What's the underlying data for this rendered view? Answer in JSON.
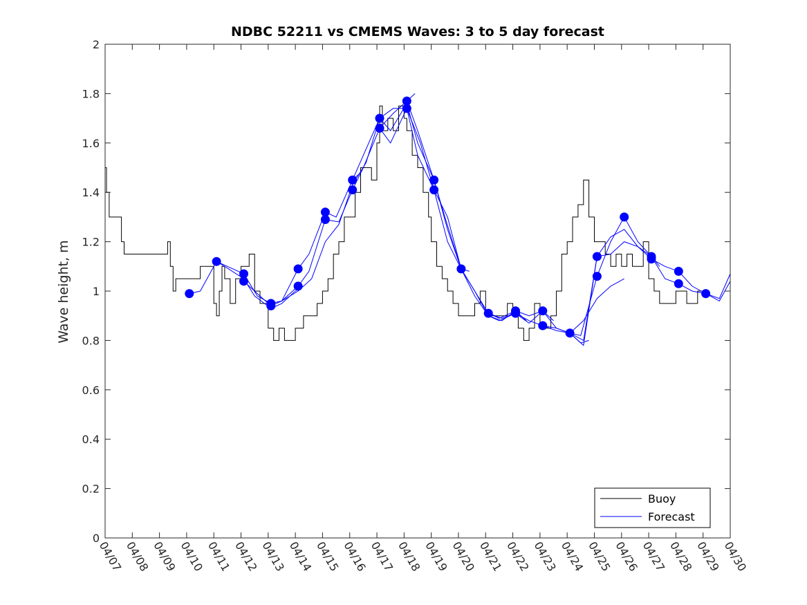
{
  "chart_data": {
    "type": "line",
    "title": "NDBC 52211 vs CMEMS Waves: 3 to 5 day forecast",
    "xlabel": "",
    "ylabel": "Wave height, m",
    "ylim": [
      0,
      2
    ],
    "yticks": [
      0,
      0.2,
      0.4,
      0.6,
      0.8,
      1,
      1.2,
      1.4,
      1.6,
      1.8,
      2
    ],
    "xlim_days": [
      0,
      23
    ],
    "xtick_labels": [
      "04/07",
      "04/08",
      "04/09",
      "04/10",
      "04/11",
      "04/12",
      "04/13",
      "04/14",
      "04/15",
      "04/16",
      "04/17",
      "04/18",
      "04/19",
      "04/20",
      "04/21",
      "04/22",
      "04/23",
      "04/24",
      "04/25",
      "04/26",
      "04/27",
      "04/28",
      "04/29",
      "04/30"
    ],
    "grid": false,
    "legend": {
      "placement": "bottom-right",
      "entries": [
        {
          "label": "Buoy",
          "color": "#000000"
        },
        {
          "label": "Forecast",
          "color": "#0000ff"
        }
      ]
    },
    "colors": {
      "buoy": "#000000",
      "forecast": "#0000ff",
      "markers": "#0000ff"
    },
    "buoy": {
      "name": "Buoy",
      "x": [
        0,
        0.05,
        0.15,
        0.5,
        0.6,
        0.7,
        1,
        1.5,
        2,
        2.3,
        2.4,
        2.5,
        2.6,
        3,
        3.5,
        3.8,
        4,
        4.1,
        4.2,
        4.3,
        4.4,
        4.6,
        4.8,
        5,
        5.2,
        5.3,
        5.5,
        5.7,
        6,
        6.2,
        6.4,
        6.6,
        7,
        7.3,
        7.6,
        7.8,
        8,
        8.2,
        8.4,
        8.6,
        8.8,
        9.2,
        9.4,
        9.6,
        9.8,
        10,
        10.1,
        10.2,
        10.4,
        10.6,
        10.8,
        11,
        11.1,
        11.3,
        11.5,
        11.7,
        11.9,
        12,
        12.2,
        12.4,
        12.6,
        12.8,
        13,
        13.3,
        13.6,
        13.8,
        14,
        14.2,
        14.5,
        14.8,
        15,
        15.2,
        15.4,
        15.6,
        15.8,
        16,
        16.2,
        16.4,
        16.6,
        16.8,
        17,
        17.2,
        17.4,
        17.6,
        17.8,
        18,
        18.2,
        18.4,
        18.6,
        18.8,
        19,
        19.2,
        19.4,
        19.6,
        19.8,
        20,
        20.2,
        20.4,
        20.6,
        20.8,
        21,
        21.2,
        21.4,
        21.6,
        21.8,
        22,
        22.2
      ],
      "y": [
        1.5,
        1.4,
        1.3,
        1.3,
        1.2,
        1.15,
        1.15,
        1.15,
        1.15,
        1.2,
        1.1,
        1.0,
        1.05,
        1.05,
        1.1,
        1.1,
        0.95,
        0.9,
        1.0,
        1.1,
        1.05,
        0.95,
        1.05,
        1.1,
        1.1,
        1.15,
        1.0,
        0.95,
        0.85,
        0.8,
        0.85,
        0.8,
        0.85,
        0.9,
        0.9,
        0.95,
        1.0,
        1.05,
        1.15,
        1.2,
        1.3,
        1.4,
        1.5,
        1.5,
        1.45,
        1.6,
        1.75,
        1.65,
        1.7,
        1.65,
        1.75,
        1.7,
        1.65,
        1.55,
        1.5,
        1.4,
        1.3,
        1.2,
        1.1,
        1.05,
        1.0,
        0.95,
        0.9,
        0.9,
        0.95,
        1.0,
        0.9,
        0.9,
        0.9,
        0.95,
        0.9,
        0.85,
        0.8,
        0.85,
        0.95,
        0.85,
        0.85,
        0.9,
        1.0,
        1.15,
        1.2,
        1.3,
        1.35,
        1.45,
        1.3,
        1.2,
        1.2,
        1.15,
        1.1,
        1.15,
        1.1,
        1.15,
        1.1,
        1.1,
        1.2,
        1.05,
        1.0,
        0.95,
        0.95,
        0.95,
        1.0,
        1.0,
        0.95,
        0.95,
        1.0,
        1.0,
        1.0
      ]
    },
    "forecast_series": [
      {
        "x": [
          3.1,
          3.5,
          4.0,
          4.1,
          4.4,
          5.1,
          5.5,
          6.1,
          6.5,
          7.0,
          7.3
        ],
        "y": [
          0.99,
          1.0,
          1.1,
          1.12,
          1.1,
          1.05,
          0.98,
          0.93,
          0.95,
          1.0,
          1.02
        ]
      },
      {
        "x": [
          4.1,
          4.5,
          5.1,
          5.6,
          6.1,
          6.5,
          7.1,
          7.5,
          8.1,
          8.5,
          9.1,
          9.4
        ],
        "y": [
          1.12,
          1.1,
          1.07,
          0.98,
          0.95,
          0.96,
          1.09,
          1.15,
          1.32,
          1.3,
          1.45,
          1.48
        ]
      },
      {
        "x": [
          5.1,
          5.5,
          6.1,
          6.5,
          7.1,
          7.5,
          8.1,
          8.6,
          9.1,
          9.5,
          10.1,
          10.6,
          11.1,
          11.4
        ],
        "y": [
          1.04,
          1.0,
          0.94,
          0.96,
          1.02,
          1.08,
          1.29,
          1.28,
          1.41,
          1.5,
          1.66,
          1.72,
          1.77,
          1.8
        ]
      },
      {
        "x": [
          6.1,
          6.5,
          7.1,
          7.6,
          8.1,
          8.6,
          9.1,
          9.6,
          10.1,
          10.6,
          11.1,
          11.6,
          12.1,
          12.6,
          13.1,
          13.4
        ],
        "y": [
          0.95,
          0.96,
          1.0,
          1.05,
          1.2,
          1.27,
          1.43,
          1.52,
          1.7,
          1.74,
          1.74,
          1.6,
          1.41,
          1.3,
          1.09,
          1.08
        ]
      },
      {
        "x": [
          9.1,
          9.5,
          10.1,
          10.5,
          11.1,
          11.5,
          12.1,
          12.6,
          13.1,
          13.6,
          14.1,
          14.5,
          15.1,
          15.5
        ],
        "y": [
          1.45,
          1.55,
          1.7,
          1.65,
          1.76,
          1.6,
          1.45,
          1.25,
          1.09,
          1.0,
          0.91,
          0.89,
          0.92,
          0.88
        ]
      },
      {
        "x": [
          10.1,
          10.5,
          11.1,
          11.5,
          12.1,
          12.6,
          13.1,
          13.6,
          14.1,
          14.6,
          15.1,
          15.6,
          16.1,
          16.5
        ],
        "y": [
          1.66,
          1.6,
          1.74,
          1.55,
          1.41,
          1.2,
          1.09,
          0.98,
          0.9,
          0.88,
          0.92,
          0.9,
          0.92,
          0.88
        ]
      },
      {
        "x": [
          11.1,
          11.5,
          12.1,
          12.5,
          13.1,
          13.6,
          14.1,
          14.5,
          15.1,
          15.6,
          16.1,
          16.6,
          17.1,
          17.5,
          17.8
        ],
        "y": [
          1.77,
          1.65,
          1.45,
          1.3,
          1.09,
          1.0,
          0.9,
          0.88,
          0.91,
          0.88,
          0.86,
          0.85,
          0.83,
          0.79,
          0.8
        ]
      },
      {
        "x": [
          14.1,
          14.6,
          15.1,
          15.6,
          16.1,
          16.6,
          17.1,
          17.5,
          18.1,
          18.6,
          19.1,
          19.6,
          20.1,
          20.4
        ],
        "y": [
          0.91,
          0.89,
          0.91,
          0.87,
          0.92,
          0.85,
          0.83,
          0.82,
          1.06,
          1.2,
          1.3,
          1.2,
          1.14,
          1.1
        ]
      },
      {
        "x": [
          16.1,
          16.6,
          17.1,
          17.6,
          18.1,
          18.6,
          19.1,
          19.6,
          20.1,
          20.6,
          21.1,
          21.6,
          22.1,
          22.6,
          23.0
        ],
        "y": [
          0.86,
          0.84,
          0.83,
          0.78,
          1.14,
          1.22,
          1.25,
          1.18,
          1.14,
          1.05,
          1.03,
          1.0,
          0.99,
          0.97,
          1.07
        ]
      },
      {
        "x": [
          17.1,
          17.6,
          18.1,
          18.6,
          19.1,
          19.6,
          20.1,
          20.6,
          21.1,
          21.6,
          22.1,
          22.6,
          23.0
        ],
        "y": [
          0.83,
          0.8,
          1.14,
          1.15,
          1.2,
          1.18,
          1.13,
          1.1,
          1.08,
          1.02,
          0.99,
          0.96,
          1.04
        ]
      },
      {
        "x": [
          17.1,
          17.6,
          18.1,
          18.6,
          19.1
        ],
        "y": [
          0.83,
          0.88,
          0.97,
          1.02,
          1.05
        ]
      }
    ],
    "markers": {
      "x": [
        3.1,
        4.1,
        5.1,
        5.1,
        6.1,
        6.1,
        7.1,
        7.1,
        8.1,
        8.1,
        9.1,
        9.1,
        10.1,
        10.1,
        11.1,
        11.1,
        12.1,
        12.1,
        13.1,
        14.1,
        15.1,
        15.1,
        16.1,
        16.1,
        17.1,
        18.1,
        18.1,
        19.1,
        20.1,
        20.1,
        21.1,
        21.1,
        22.1
      ],
      "y": [
        0.99,
        1.12,
        1.07,
        1.04,
        0.95,
        0.94,
        1.09,
        1.02,
        1.32,
        1.29,
        1.45,
        1.41,
        1.7,
        1.66,
        1.77,
        1.74,
        1.45,
        1.41,
        1.09,
        0.91,
        0.92,
        0.91,
        0.92,
        0.86,
        0.83,
        1.14,
        1.06,
        1.3,
        1.14,
        1.13,
        1.08,
        1.03,
        0.99
      ]
    }
  }
}
